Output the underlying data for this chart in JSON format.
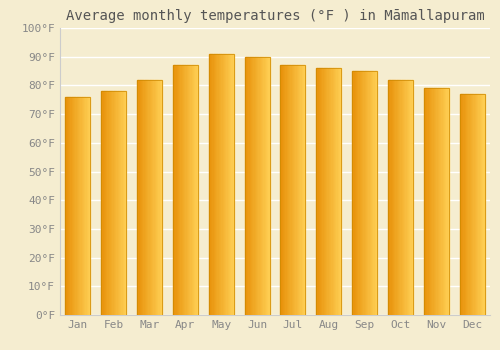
{
  "title": "Average monthly temperatures (°F ) in Māmallapuram",
  "months": [
    "Jan",
    "Feb",
    "Mar",
    "Apr",
    "May",
    "Jun",
    "Jul",
    "Aug",
    "Sep",
    "Oct",
    "Nov",
    "Dec"
  ],
  "values": [
    76,
    78,
    82,
    87,
    91,
    90,
    87,
    86,
    85,
    82,
    79,
    77
  ],
  "bar_color_left": "#E8920A",
  "bar_color_right": "#FFD055",
  "ylim": [
    0,
    100
  ],
  "yticks": [
    0,
    10,
    20,
    30,
    40,
    50,
    60,
    70,
    80,
    90,
    100
  ],
  "ytick_labels": [
    "0°F",
    "10°F",
    "20°F",
    "30°F",
    "40°F",
    "50°F",
    "60°F",
    "70°F",
    "80°F",
    "90°F",
    "100°F"
  ],
  "background_color": "#F5EDD0",
  "plot_bg_color": "#F5EDD0",
  "grid_color": "#FFFFFF",
  "title_fontsize": 10,
  "tick_fontsize": 8,
  "bar_width": 0.7,
  "n_gradient_steps": 20
}
